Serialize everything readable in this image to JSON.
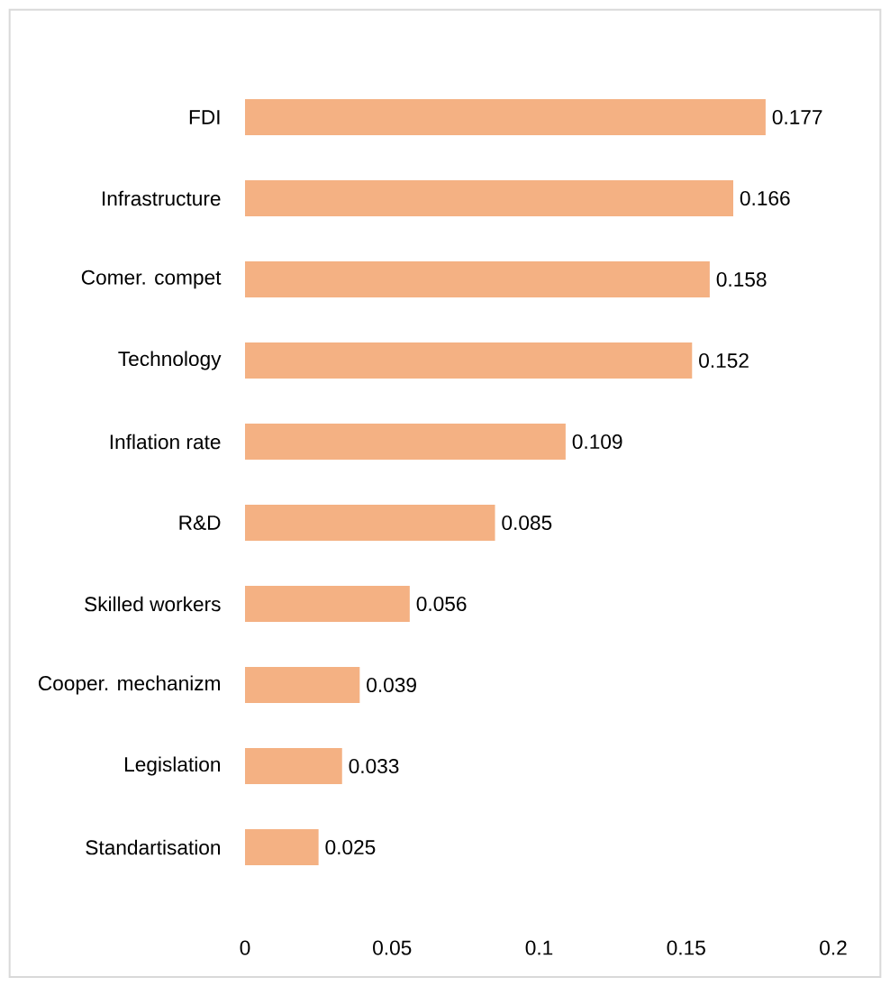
{
  "chart_data": {
    "type": "bar",
    "orientation": "horizontal",
    "categories": [
      "FDI",
      "Infrastructure",
      "Comer. compet",
      "Technology",
      "Inflation rate",
      "R&D",
      "Skilled workers",
      "Cooper. mechanizm",
      "Legislation",
      "Standartisation"
    ],
    "values": [
      0.177,
      0.166,
      0.158,
      0.152,
      0.109,
      0.085,
      0.056,
      0.039,
      0.033,
      0.025
    ],
    "color": "#f4b183",
    "data_labels": true,
    "xlim": [
      0,
      0.2
    ],
    "xticks": [
      0,
      0.05,
      0.1,
      0.15,
      0.2
    ]
  }
}
